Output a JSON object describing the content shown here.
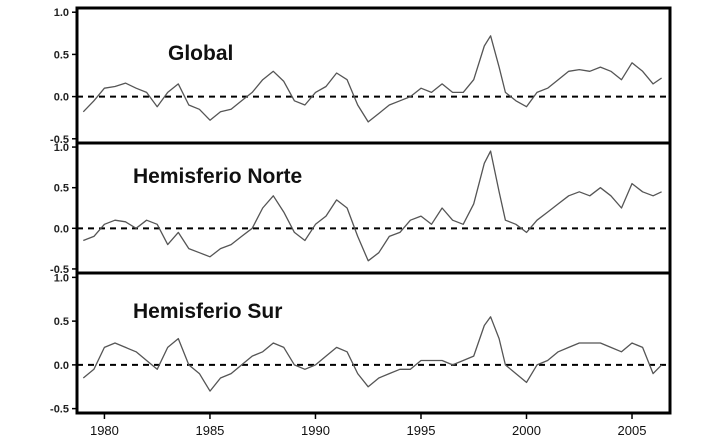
{
  "chart_data": {
    "type": "line",
    "x_ticks": [
      1980,
      1985,
      1990,
      1995,
      2000,
      2005
    ],
    "xlim": [
      1978.7,
      2006.8
    ],
    "panels": [
      {
        "title": "Global",
        "ylim": [
          -0.55,
          1.05
        ],
        "y_ticks": [
          {
            "v": -0.5,
            "label": "-0.5"
          },
          {
            "v": 0.0,
            "label": "0.0"
          },
          {
            "v": 0.5,
            "label": "0.5"
          },
          {
            "v": 1.0,
            "label": "1.0"
          }
        ],
        "reference_line": 0.0,
        "series": [
          {
            "color": "#555555",
            "points": [
              [
                1979.0,
                -0.18
              ],
              [
                1979.5,
                -0.05
              ],
              [
                1980.0,
                0.1
              ],
              [
                1980.5,
                0.12
              ],
              [
                1981.0,
                0.16
              ],
              [
                1981.5,
                0.1
              ],
              [
                1982.0,
                0.05
              ],
              [
                1982.5,
                -0.12
              ],
              [
                1983.0,
                0.05
              ],
              [
                1983.5,
                0.15
              ],
              [
                1984.0,
                -0.1
              ],
              [
                1984.5,
                -0.15
              ],
              [
                1985.0,
                -0.28
              ],
              [
                1985.5,
                -0.18
              ],
              [
                1986.0,
                -0.15
              ],
              [
                1986.5,
                -0.05
              ],
              [
                1987.0,
                0.05
              ],
              [
                1987.5,
                0.2
              ],
              [
                1988.0,
                0.3
              ],
              [
                1988.5,
                0.18
              ],
              [
                1989.0,
                -0.05
              ],
              [
                1989.5,
                -0.1
              ],
              [
                1990.0,
                0.05
              ],
              [
                1990.5,
                0.12
              ],
              [
                1991.0,
                0.28
              ],
              [
                1991.5,
                0.2
              ],
              [
                1992.0,
                -0.1
              ],
              [
                1992.5,
                -0.3
              ],
              [
                1993.0,
                -0.2
              ],
              [
                1993.5,
                -0.1
              ],
              [
                1994.0,
                -0.05
              ],
              [
                1994.5,
                0.0
              ],
              [
                1995.0,
                0.1
              ],
              [
                1995.5,
                0.05
              ],
              [
                1996.0,
                0.15
              ],
              [
                1996.5,
                0.05
              ],
              [
                1997.0,
                0.05
              ],
              [
                1997.5,
                0.2
              ],
              [
                1998.0,
                0.6
              ],
              [
                1998.3,
                0.72
              ],
              [
                1998.7,
                0.35
              ],
              [
                1999.0,
                0.05
              ],
              [
                1999.5,
                -0.05
              ],
              [
                2000.0,
                -0.12
              ],
              [
                2000.5,
                0.05
              ],
              [
                2001.0,
                0.1
              ],
              [
                2001.5,
                0.2
              ],
              [
                2002.0,
                0.3
              ],
              [
                2002.5,
                0.32
              ],
              [
                2003.0,
                0.3
              ],
              [
                2003.5,
                0.35
              ],
              [
                2004.0,
                0.3
              ],
              [
                2004.5,
                0.2
              ],
              [
                2005.0,
                0.4
              ],
              [
                2005.5,
                0.3
              ],
              [
                2006.0,
                0.15
              ],
              [
                2006.4,
                0.22
              ]
            ]
          }
        ]
      },
      {
        "title": "Hemisferio Norte",
        "ylim": [
          -0.55,
          1.05
        ],
        "y_ticks": [
          {
            "v": -0.5,
            "label": "-0.5"
          },
          {
            "v": 0.0,
            "label": "0.0"
          },
          {
            "v": 0.5,
            "label": "0.5"
          },
          {
            "v": 1.0,
            "label": "1.0"
          }
        ],
        "reference_line": 0.0,
        "series": [
          {
            "color": "#555555",
            "points": [
              [
                1979.0,
                -0.15
              ],
              [
                1979.5,
                -0.1
              ],
              [
                1980.0,
                0.05
              ],
              [
                1980.5,
                0.1
              ],
              [
                1981.0,
                0.08
              ],
              [
                1981.5,
                0.0
              ],
              [
                1982.0,
                0.1
              ],
              [
                1982.5,
                0.05
              ],
              [
                1983.0,
                -0.2
              ],
              [
                1983.5,
                -0.05
              ],
              [
                1984.0,
                -0.25
              ],
              [
                1984.5,
                -0.3
              ],
              [
                1985.0,
                -0.35
              ],
              [
                1985.5,
                -0.25
              ],
              [
                1986.0,
                -0.2
              ],
              [
                1986.5,
                -0.1
              ],
              [
                1987.0,
                0.0
              ],
              [
                1987.5,
                0.25
              ],
              [
                1988.0,
                0.4
              ],
              [
                1988.5,
                0.2
              ],
              [
                1989.0,
                -0.05
              ],
              [
                1989.5,
                -0.15
              ],
              [
                1990.0,
                0.05
              ],
              [
                1990.5,
                0.15
              ],
              [
                1991.0,
                0.35
              ],
              [
                1991.5,
                0.25
              ],
              [
                1992.0,
                -0.1
              ],
              [
                1992.5,
                -0.4
              ],
              [
                1993.0,
                -0.3
              ],
              [
                1993.5,
                -0.1
              ],
              [
                1994.0,
                -0.05
              ],
              [
                1994.5,
                0.1
              ],
              [
                1995.0,
                0.15
              ],
              [
                1995.5,
                0.05
              ],
              [
                1996.0,
                0.25
              ],
              [
                1996.5,
                0.1
              ],
              [
                1997.0,
                0.05
              ],
              [
                1997.5,
                0.3
              ],
              [
                1998.0,
                0.8
              ],
              [
                1998.3,
                0.95
              ],
              [
                1998.7,
                0.45
              ],
              [
                1999.0,
                0.1
              ],
              [
                1999.5,
                0.05
              ],
              [
                2000.0,
                -0.05
              ],
              [
                2000.5,
                0.1
              ],
              [
                2001.0,
                0.2
              ],
              [
                2001.5,
                0.3
              ],
              [
                2002.0,
                0.4
              ],
              [
                2002.5,
                0.45
              ],
              [
                2003.0,
                0.4
              ],
              [
                2003.5,
                0.5
              ],
              [
                2004.0,
                0.4
              ],
              [
                2004.5,
                0.25
              ],
              [
                2005.0,
                0.55
              ],
              [
                2005.5,
                0.45
              ],
              [
                2006.0,
                0.4
              ],
              [
                2006.4,
                0.45
              ]
            ]
          }
        ]
      },
      {
        "title": "Hemisferio Sur",
        "ylim": [
          -0.55,
          1.05
        ],
        "y_ticks": [
          {
            "v": -0.5,
            "label": "-0.5"
          },
          {
            "v": 0.0,
            "label": "0.0"
          },
          {
            "v": 0.5,
            "label": "0.5"
          },
          {
            "v": 1.0,
            "label": "1.0"
          }
        ],
        "reference_line": 0.0,
        "series": [
          {
            "color": "#555555",
            "points": [
              [
                1979.0,
                -0.15
              ],
              [
                1979.5,
                -0.05
              ],
              [
                1980.0,
                0.2
              ],
              [
                1980.5,
                0.25
              ],
              [
                1981.0,
                0.2
              ],
              [
                1981.5,
                0.15
              ],
              [
                1982.0,
                0.05
              ],
              [
                1982.5,
                -0.05
              ],
              [
                1983.0,
                0.2
              ],
              [
                1983.5,
                0.3
              ],
              [
                1984.0,
                0.0
              ],
              [
                1984.5,
                -0.1
              ],
              [
                1985.0,
                -0.3
              ],
              [
                1985.5,
                -0.15
              ],
              [
                1986.0,
                -0.1
              ],
              [
                1986.5,
                0.0
              ],
              [
                1987.0,
                0.1
              ],
              [
                1987.5,
                0.15
              ],
              [
                1988.0,
                0.25
              ],
              [
                1988.5,
                0.2
              ],
              [
                1989.0,
                0.0
              ],
              [
                1989.5,
                -0.05
              ],
              [
                1990.0,
                0.0
              ],
              [
                1990.5,
                0.1
              ],
              [
                1991.0,
                0.2
              ],
              [
                1991.5,
                0.15
              ],
              [
                1992.0,
                -0.1
              ],
              [
                1992.5,
                -0.25
              ],
              [
                1993.0,
                -0.15
              ],
              [
                1993.5,
                -0.1
              ],
              [
                1994.0,
                -0.05
              ],
              [
                1994.5,
                -0.05
              ],
              [
                1995.0,
                0.05
              ],
              [
                1995.5,
                0.05
              ],
              [
                1996.0,
                0.05
              ],
              [
                1996.5,
                0.0
              ],
              [
                1997.0,
                0.05
              ],
              [
                1997.5,
                0.1
              ],
              [
                1998.0,
                0.45
              ],
              [
                1998.3,
                0.55
              ],
              [
                1998.7,
                0.3
              ],
              [
                1999.0,
                0.0
              ],
              [
                1999.5,
                -0.1
              ],
              [
                2000.0,
                -0.2
              ],
              [
                2000.5,
                0.0
              ],
              [
                2001.0,
                0.05
              ],
              [
                2001.5,
                0.15
              ],
              [
                2002.0,
                0.2
              ],
              [
                2002.5,
                0.25
              ],
              [
                2003.0,
                0.25
              ],
              [
                2003.5,
                0.25
              ],
              [
                2004.0,
                0.2
              ],
              [
                2004.5,
                0.15
              ],
              [
                2005.0,
                0.25
              ],
              [
                2005.5,
                0.2
              ],
              [
                2006.0,
                -0.1
              ],
              [
                2006.4,
                0.0
              ]
            ]
          }
        ]
      }
    ]
  }
}
